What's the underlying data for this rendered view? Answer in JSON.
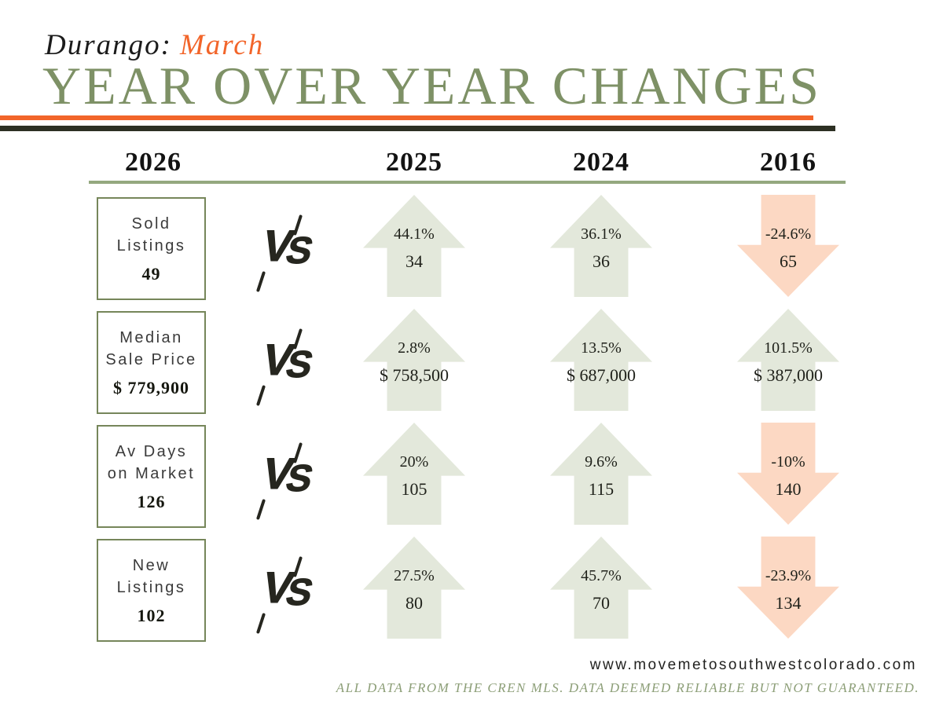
{
  "header": {
    "location": "Durango:",
    "month": "March",
    "title": "YEAR OVER YEAR CHANGES"
  },
  "columns": {
    "current_year": "2026",
    "compare_years": [
      "2025",
      "2024",
      "2016"
    ]
  },
  "vs_icon": {
    "v": "V",
    "s": "S"
  },
  "rows": [
    {
      "label": "Sold\nListings",
      "value": "49",
      "comparisons": [
        {
          "year": "2025",
          "percent": "44.1%",
          "value": "34",
          "direction": "up"
        },
        {
          "year": "2024",
          "percent": "36.1%",
          "value": "36",
          "direction": "up"
        },
        {
          "year": "2016",
          "percent": "-24.6%",
          "value": "65",
          "direction": "down"
        }
      ]
    },
    {
      "label": "Median\nSale Price",
      "value": "$ 779,900",
      "comparisons": [
        {
          "year": "2025",
          "percent": "2.8%",
          "value": "$ 758,500",
          "direction": "up"
        },
        {
          "year": "2024",
          "percent": "13.5%",
          "value": "$ 687,000",
          "direction": "up"
        },
        {
          "year": "2016",
          "percent": "101.5%",
          "value": "$ 387,000",
          "direction": "up"
        }
      ]
    },
    {
      "label": "Av Days\non Market",
      "value": "126",
      "comparisons": [
        {
          "year": "2025",
          "percent": "20%",
          "value": "105",
          "direction": "up"
        },
        {
          "year": "2024",
          "percent": "9.6%",
          "value": "115",
          "direction": "up"
        },
        {
          "year": "2016",
          "percent": "-10%",
          "value": "140",
          "direction": "down"
        }
      ]
    },
    {
      "label": "New\nListings",
      "value": "102",
      "comparisons": [
        {
          "year": "2025",
          "percent": "27.5%",
          "value": "80",
          "direction": "up"
        },
        {
          "year": "2024",
          "percent": "45.7%",
          "value": "70",
          "direction": "up"
        },
        {
          "year": "2016",
          "percent": "-23.9%",
          "value": "134",
          "direction": "down"
        }
      ]
    }
  ],
  "footer": {
    "website": "www.movemetosouthwestcolorado.com",
    "disclaimer": "ALL DATA FROM THE CREN MLS. DATA DEEMED RELIABLE BUT NOT GUARANTEED."
  },
  "colors": {
    "accent_orange": "#f2652a",
    "title_green": "#7e9166",
    "box_border_green": "#76865a",
    "divider_green": "#94a87f",
    "dark_rule": "#2d3023",
    "arrow_up_fill": "#e3e8db",
    "arrow_down_fill": "#fcd8c3"
  },
  "chart_data": {
    "type": "table",
    "title": "Durango: March — Year over Year Changes",
    "columns": [
      "Metric",
      "2026",
      "vs 2025 % / value",
      "vs 2024 % / value",
      "vs 2016 % / value"
    ],
    "rows": [
      [
        "Sold Listings",
        "49",
        "44.1% / 34 (up)",
        "36.1% / 36 (up)",
        "-24.6% / 65 (down)"
      ],
      [
        "Median Sale Price",
        "$ 779,900",
        "2.8% / $ 758,500 (up)",
        "13.5% / $ 687,000 (up)",
        "101.5% / $ 387,000 (up)"
      ],
      [
        "Av Days on Market",
        "126",
        "20% / 105 (up)",
        "9.6% / 115 (up)",
        "-10% / 140 (down)"
      ],
      [
        "New Listings",
        "102",
        "27.5% / 80 (up)",
        "45.7% / 70 (up)",
        "-23.9% / 134 (down)"
      ]
    ]
  }
}
